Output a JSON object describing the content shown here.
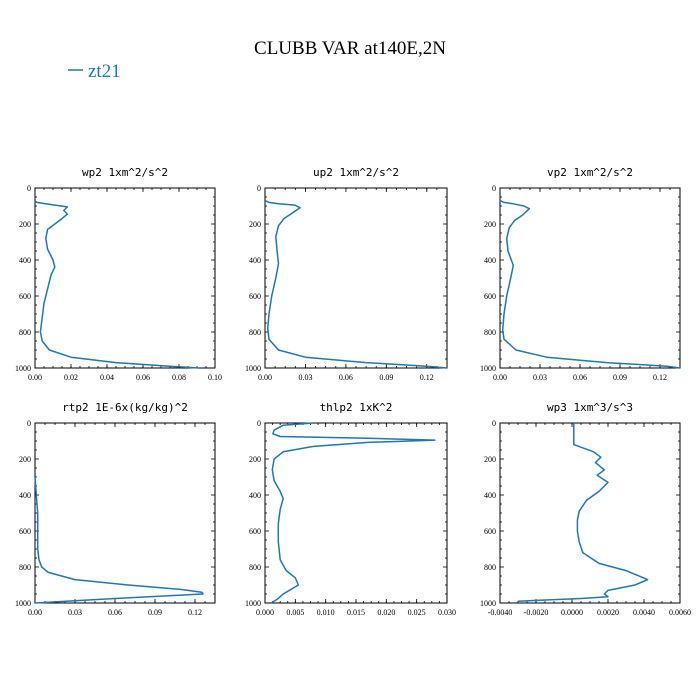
{
  "title": "CLUBB VAR at140E,2N",
  "legend": {
    "label": "zt21",
    "color": "#1f77b4",
    "placement": "top-left"
  },
  "chart_data": [
    {
      "type": "line",
      "title": "wp2  1xm^2/s^2",
      "xlim": [
        0,
        0.1
      ],
      "ylim": [
        1000,
        0
      ],
      "grid": false,
      "xticks": [
        "0.00",
        "0.02",
        "0.04",
        "0.06",
        "0.08",
        "0.10"
      ],
      "yticks": [
        "0",
        "200",
        "400",
        "600",
        "800",
        "1000"
      ],
      "series": [
        {
          "name": "zt21",
          "x": [
            0.0,
            0.001,
            0.004,
            0.011,
            0.018,
            0.016,
            0.018,
            0.015,
            0.011,
            0.007,
            0.006,
            0.007,
            0.01,
            0.011,
            0.009,
            0.007,
            0.005,
            0.004,
            0.003,
            0.004,
            0.008,
            0.02,
            0.045,
            0.075,
            0.091
          ],
          "y": [
            70,
            80,
            85,
            95,
            105,
            125,
            145,
            170,
            200,
            230,
            280,
            340,
            400,
            440,
            480,
            560,
            640,
            720,
            800,
            850,
            900,
            940,
            970,
            990,
            1000
          ]
        }
      ]
    },
    {
      "type": "line",
      "title": "up2  1xm^2/s^2",
      "xlim": [
        0,
        0.135
      ],
      "ylim": [
        1000,
        0
      ],
      "grid": false,
      "xticks": [
        "0.00",
        "0.03",
        "0.06",
        "0.09",
        "0.12"
      ],
      "yticks": [
        "0",
        "200",
        "400",
        "600",
        "800",
        "1000"
      ],
      "series": [
        {
          "name": "zt21",
          "x": [
            0.0,
            0.003,
            0.01,
            0.022,
            0.026,
            0.02,
            0.014,
            0.01,
            0.008,
            0.009,
            0.01,
            0.008,
            0.005,
            0.003,
            0.002,
            0.003,
            0.01,
            0.03,
            0.075,
            0.12,
            0.135
          ],
          "y": [
            70,
            80,
            88,
            95,
            110,
            140,
            170,
            210,
            270,
            350,
            420,
            500,
            600,
            700,
            780,
            840,
            900,
            940,
            970,
            990,
            1000
          ]
        }
      ]
    },
    {
      "type": "line",
      "title": "vp2  1xm^2/s^2",
      "xlim": [
        0,
        0.135
      ],
      "ylim": [
        1000,
        0
      ],
      "grid": false,
      "xticks": [
        "0.00",
        "0.03",
        "0.06",
        "0.09",
        "0.12"
      ],
      "yticks": [
        "0",
        "200",
        "400",
        "600",
        "800",
        "1000"
      ],
      "series": [
        {
          "name": "zt21",
          "x": [
            0.0,
            0.003,
            0.01,
            0.018,
            0.022,
            0.017,
            0.011,
            0.007,
            0.005,
            0.006,
            0.01,
            0.008,
            0.005,
            0.003,
            0.002,
            0.003,
            0.012,
            0.035,
            0.08,
            0.125,
            0.135
          ],
          "y": [
            70,
            80,
            88,
            100,
            115,
            150,
            180,
            220,
            280,
            350,
            430,
            500,
            600,
            700,
            790,
            840,
            900,
            940,
            970,
            990,
            1000
          ]
        }
      ]
    },
    {
      "type": "line",
      "title": "rtp2  1E-6x(kg/kg)^2",
      "xlim": [
        0,
        0.135
      ],
      "ylim": [
        1000,
        0
      ],
      "grid": false,
      "xticks": [
        "0.00",
        "0.03",
        "0.06",
        "0.09",
        "0.12"
      ],
      "yticks": [
        "0",
        "200",
        "400",
        "600",
        "800",
        "1000"
      ],
      "series": [
        {
          "name": "zt21",
          "x": [
            0.0,
            0.001,
            0.002,
            0.002,
            0.002,
            0.003,
            0.005,
            0.01,
            0.03,
            0.07,
            0.11,
            0.125,
            0.126,
            0.06,
            0.0
          ],
          "y": [
            300,
            400,
            500,
            600,
            700,
            760,
            800,
            830,
            870,
            900,
            925,
            940,
            950,
            975,
            1000
          ]
        }
      ]
    },
    {
      "type": "line",
      "title": "thlp2  1xK^2",
      "xlim": [
        0,
        0.03
      ],
      "ylim": [
        1000,
        0
      ],
      "grid": false,
      "xticks": [
        "0.000",
        "0.005",
        "0.010",
        "0.015",
        "0.020",
        "0.025",
        "0.030"
      ],
      "yticks": [
        "0",
        "200",
        "400",
        "600",
        "800",
        "1000"
      ],
      "series": [
        {
          "name": "zt21",
          "x": [
            0.0079,
            0.003,
            0.0015,
            0.0013,
            0.0025,
            0.017,
            0.028,
            0.017,
            0.008,
            0.003,
            0.0015,
            0.0012,
            0.0015,
            0.0025,
            0.003,
            0.0025,
            0.0022,
            0.0022,
            0.0025,
            0.0035,
            0.005,
            0.0055,
            0.0045,
            0.003,
            0.002,
            0.001
          ],
          "y": [
            0,
            12,
            40,
            60,
            75,
            85,
            95,
            108,
            130,
            160,
            200,
            260,
            320,
            380,
            420,
            480,
            560,
            660,
            760,
            820,
            860,
            900,
            920,
            950,
            980,
            1000
          ]
        }
      ]
    },
    {
      "type": "line",
      "title": "wp3  1xm^3/s^3",
      "xlim": [
        -0.004,
        0.006
      ],
      "ylim": [
        1000,
        0
      ],
      "grid": false,
      "xticks": [
        "-0.0040",
        "-0.0020",
        "0.0000",
        "0.0020",
        "0.0040",
        "0.0060"
      ],
      "yticks": [
        "0",
        "200",
        "400",
        "600",
        "800",
        "1000"
      ],
      "series": [
        {
          "name": "zt21",
          "x": [
            0.0001,
            0.0001,
            0.0001,
            0.0012,
            0.0016,
            0.0013,
            0.0018,
            0.0014,
            0.002,
            0.0015,
            0.0008,
            0.0004,
            0.0003,
            0.0003,
            0.0004,
            0.0006,
            0.0015,
            0.003,
            0.0042,
            0.0035,
            0.002,
            0.0018,
            0.002,
            0.0005,
            -0.0018,
            -0.003
          ],
          "y": [
            0,
            50,
            120,
            160,
            190,
            220,
            260,
            290,
            330,
            380,
            430,
            490,
            540,
            600,
            660,
            720,
            780,
            820,
            870,
            900,
            930,
            950,
            965,
            975,
            985,
            990
          ]
        }
      ]
    }
  ]
}
